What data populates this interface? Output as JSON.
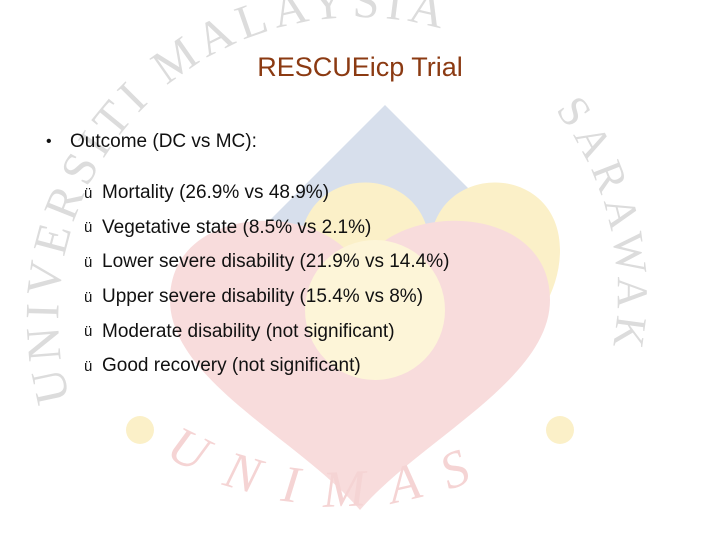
{
  "slide": {
    "title": "RESCUEicp Trial",
    "bullet_marker": "•",
    "bullet": "Outcome (DC vs MC):",
    "check_marker": "ü",
    "checks": [
      "Mortality (26.9% vs 48.9%)",
      "Vegetative state (8.5% vs 2.1%)",
      "Lower severe disability (21.9% vs 14.4%)",
      "Upper severe disability (15.4% vs 8%)",
      "Moderate disability (not significant)",
      "Good recovery (not significant)"
    ]
  },
  "watermark": {
    "seal_text": "UNIVERSITI MALAYSIA SARAWAK UNIMAS",
    "colors": {
      "blue": "#d7dfec",
      "red": "#f8dcdc",
      "yellow": "#fbf0c8",
      "text": "#dcdcdc"
    }
  }
}
